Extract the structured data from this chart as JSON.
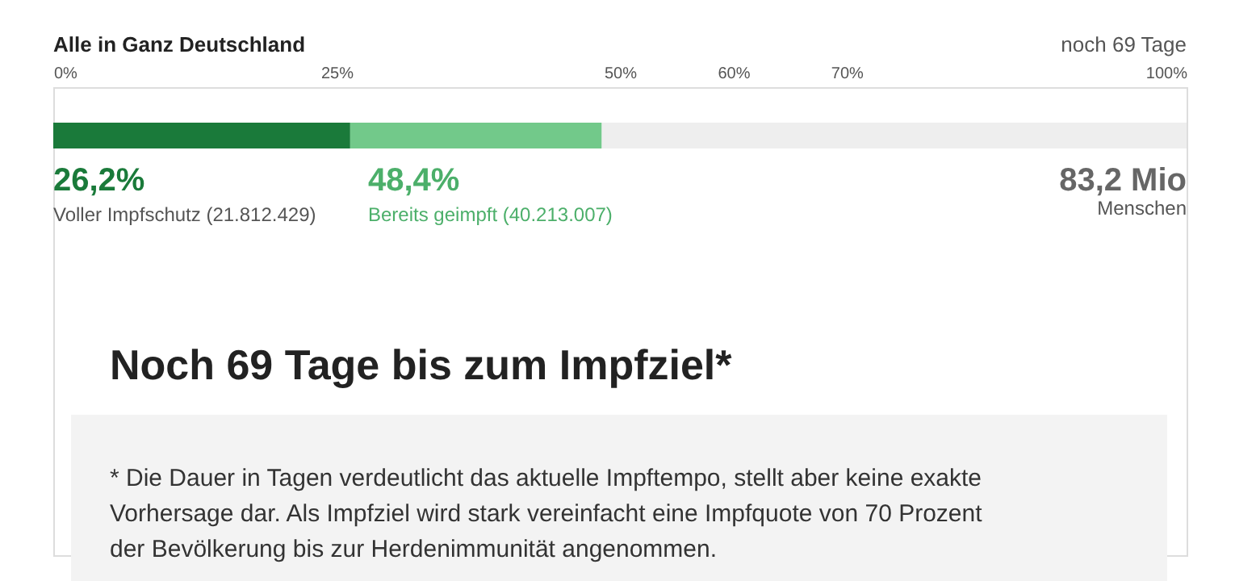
{
  "chart_data": {
    "type": "bar",
    "orientation": "horizontal",
    "stacked": true,
    "title": "Alle in Ganz Deutschland",
    "categories": [
      null
    ],
    "series": [
      {
        "color": "#1a7a3a",
        "values": [
          26.2
        ]
      },
      {
        "color": "#72c98a",
        "values": [
          22.2
        ]
      },
      {
        "color": "#eeeeee",
        "values": [
          51.6
        ]
      }
    ],
    "xlim": [
      0,
      100
    ],
    "xticks": [
      {
        "value": 0,
        "label": "0%"
      },
      {
        "value": 25,
        "label": "25%"
      },
      {
        "value": 50,
        "label": "50%"
      },
      {
        "value": 60,
        "label": "60%"
      },
      {
        "value": 70,
        "label": "70%"
      },
      {
        "value": 100,
        "label": "100%"
      }
    ],
    "grid": false,
    "legend": false,
    "annotations": [
      "noch 69 Tage",
      "26,2%",
      "Voller Impfschutz (21.812.429)",
      "48,4%",
      "Bereits geimpft (40.213.007)",
      "83,2 Mio",
      "Menschen",
      "Noch 69 Tage bis zum Impfziel*",
      "* Die Dauer in Tagen verdeutlicht das aktuelle Impftempo, stellt aber keine exakte",
      "Vorhersage dar. Als Impfziel wird stark vereinfacht eine Impfquote von 70 Prozent",
      "der Bevölkerung bis zur Herdenimmunität angenommen."
    ]
  }
}
